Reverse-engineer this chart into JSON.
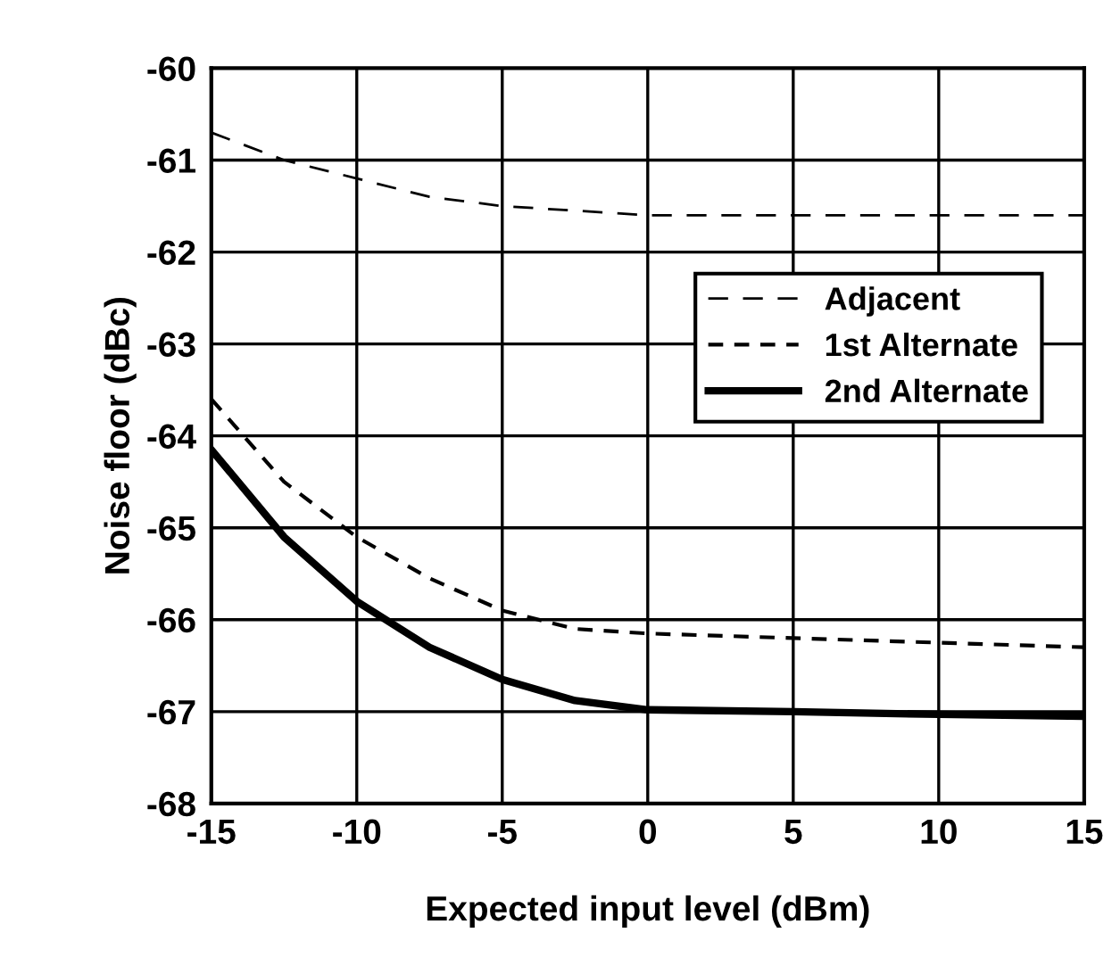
{
  "chart_data": {
    "type": "line",
    "xlabel": "Expected input level (dBm)",
    "ylabel": "Noise floor (dBc)",
    "xlim": [
      -15,
      15
    ],
    "xticks": [
      -15,
      -10,
      -5,
      0,
      5,
      10,
      15
    ],
    "ylim": [
      -68,
      -60
    ],
    "yticks": [
      -68,
      -67,
      -66,
      -65,
      -64,
      -63,
      -62,
      -61,
      -60
    ],
    "grid": true,
    "legend": "right",
    "marker": "none",
    "series": [
      {
        "name": "Adjacent",
        "color": "#000000",
        "line_style": "dashed",
        "x": [
          -15,
          -12.5,
          -10,
          -7.5,
          -5,
          -2.5,
          0,
          5,
          10,
          15
        ],
        "values": [
          -60.7,
          -61.0,
          -61.2,
          -61.4,
          -61.5,
          -61.55,
          -61.6,
          -61.6,
          -61.6,
          -61.6
        ]
      },
      {
        "name": "1st Alternate",
        "color": "#000000",
        "line_style": "dotted",
        "x": [
          -15,
          -12.5,
          -10,
          -7.5,
          -5,
          -2.5,
          0,
          5,
          10,
          15
        ],
        "values": [
          -63.6,
          -64.5,
          -65.1,
          -65.55,
          -65.9,
          -66.1,
          -66.15,
          -66.2,
          -66.25,
          -66.3
        ]
      },
      {
        "name": "2nd Alternate",
        "color": "#000000",
        "line_style": "solid",
        "x": [
          -15,
          -12.5,
          -10,
          -7.5,
          -5,
          -2.5,
          0,
          5,
          10,
          15
        ],
        "values": [
          -64.15,
          -65.1,
          -65.8,
          -66.3,
          -66.65,
          -66.88,
          -66.98,
          -67.0,
          -67.03,
          -67.05
        ]
      }
    ]
  }
}
